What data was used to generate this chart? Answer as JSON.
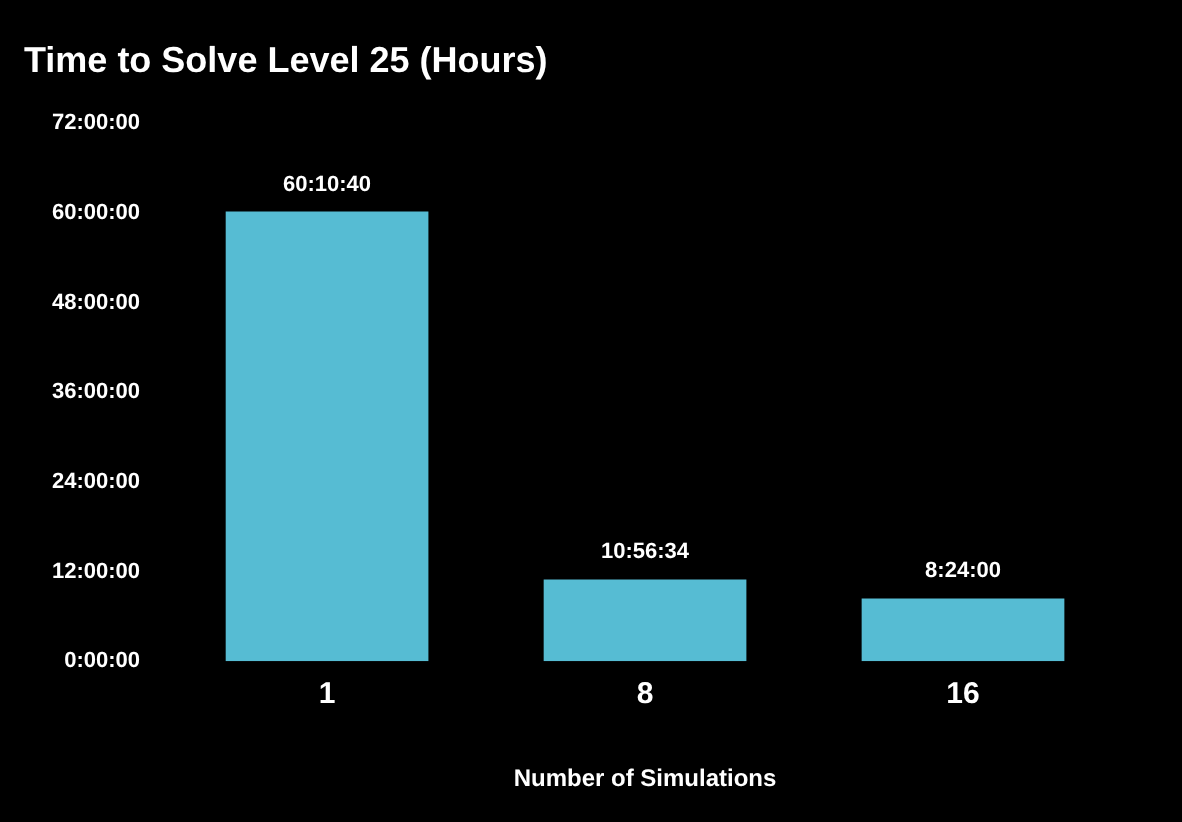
{
  "chart_data": {
    "type": "bar",
    "title": "Time to Solve Level 25 (Hours)",
    "xlabel": "Number of Simulations",
    "categories": [
      "1",
      "8",
      "16"
    ],
    "values": [
      60.1778,
      10.9428,
      8.4
    ],
    "value_labels": [
      "60:10:40",
      "10:56:34",
      "8:24:00"
    ],
    "color": "#56bcd3",
    "ylim": [
      0,
      72
    ],
    "yticks": [
      {
        "value": 0,
        "label": "0:00:00"
      },
      {
        "value": 12,
        "label": "12:00:00"
      },
      {
        "value": 24,
        "label": "24:00:00"
      },
      {
        "value": 36,
        "label": "36:00:00"
      },
      {
        "value": 48,
        "label": "48:00:00"
      },
      {
        "value": 60,
        "label": "60:00:00"
      },
      {
        "value": 72,
        "label": "72:00:00"
      }
    ],
    "grid": false,
    "legend": false
  }
}
